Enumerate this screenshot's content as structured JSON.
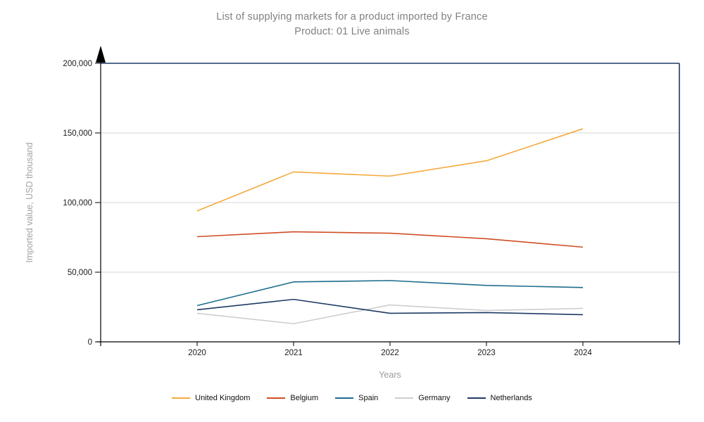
{
  "title": {
    "line1": "List of supplying markets for a product imported by France",
    "line2": "Product: 01 Live animals"
  },
  "axes": {
    "y_label": "Imported value, USD thousand",
    "x_label": "Years"
  },
  "chart_data": {
    "type": "line",
    "x": [
      "2020",
      "2021",
      "2022",
      "2023",
      "2024"
    ],
    "series": [
      {
        "name": "United Kingdom",
        "color": "#F5A93C",
        "values": [
          94000,
          122000,
          119000,
          130000,
          153000
        ]
      },
      {
        "name": "Belgium",
        "color": "#CF4D24",
        "values": [
          75500,
          79000,
          78000,
          74000,
          68000
        ]
      },
      {
        "name": "Spain",
        "color": "#1D6D8E",
        "values": [
          26000,
          43000,
          44000,
          40500,
          39000
        ]
      },
      {
        "name": "Germany",
        "color": "#CCCED0",
        "values": [
          20500,
          13000,
          26500,
          22500,
          24000
        ]
      },
      {
        "name": "Netherlands",
        "color": "#1F3A64",
        "values": [
          23000,
          30500,
          20500,
          21000,
          19500
        ]
      }
    ],
    "ylim": [
      0,
      200000
    ],
    "yticks": [
      {
        "value": 0,
        "label": "0"
      },
      {
        "value": 50000,
        "label": "50,000"
      },
      {
        "value": 100000,
        "label": "100,000"
      },
      {
        "value": 150000,
        "label": "150,000"
      },
      {
        "value": 200000,
        "label": "200,000"
      }
    ],
    "grid": "horizontal",
    "legend_position": "bottom",
    "colors": {
      "frame": "#1F3A64",
      "axis": "#000000",
      "gridline": "#D6D6D6",
      "tick_label": "#1A1A1A"
    }
  }
}
